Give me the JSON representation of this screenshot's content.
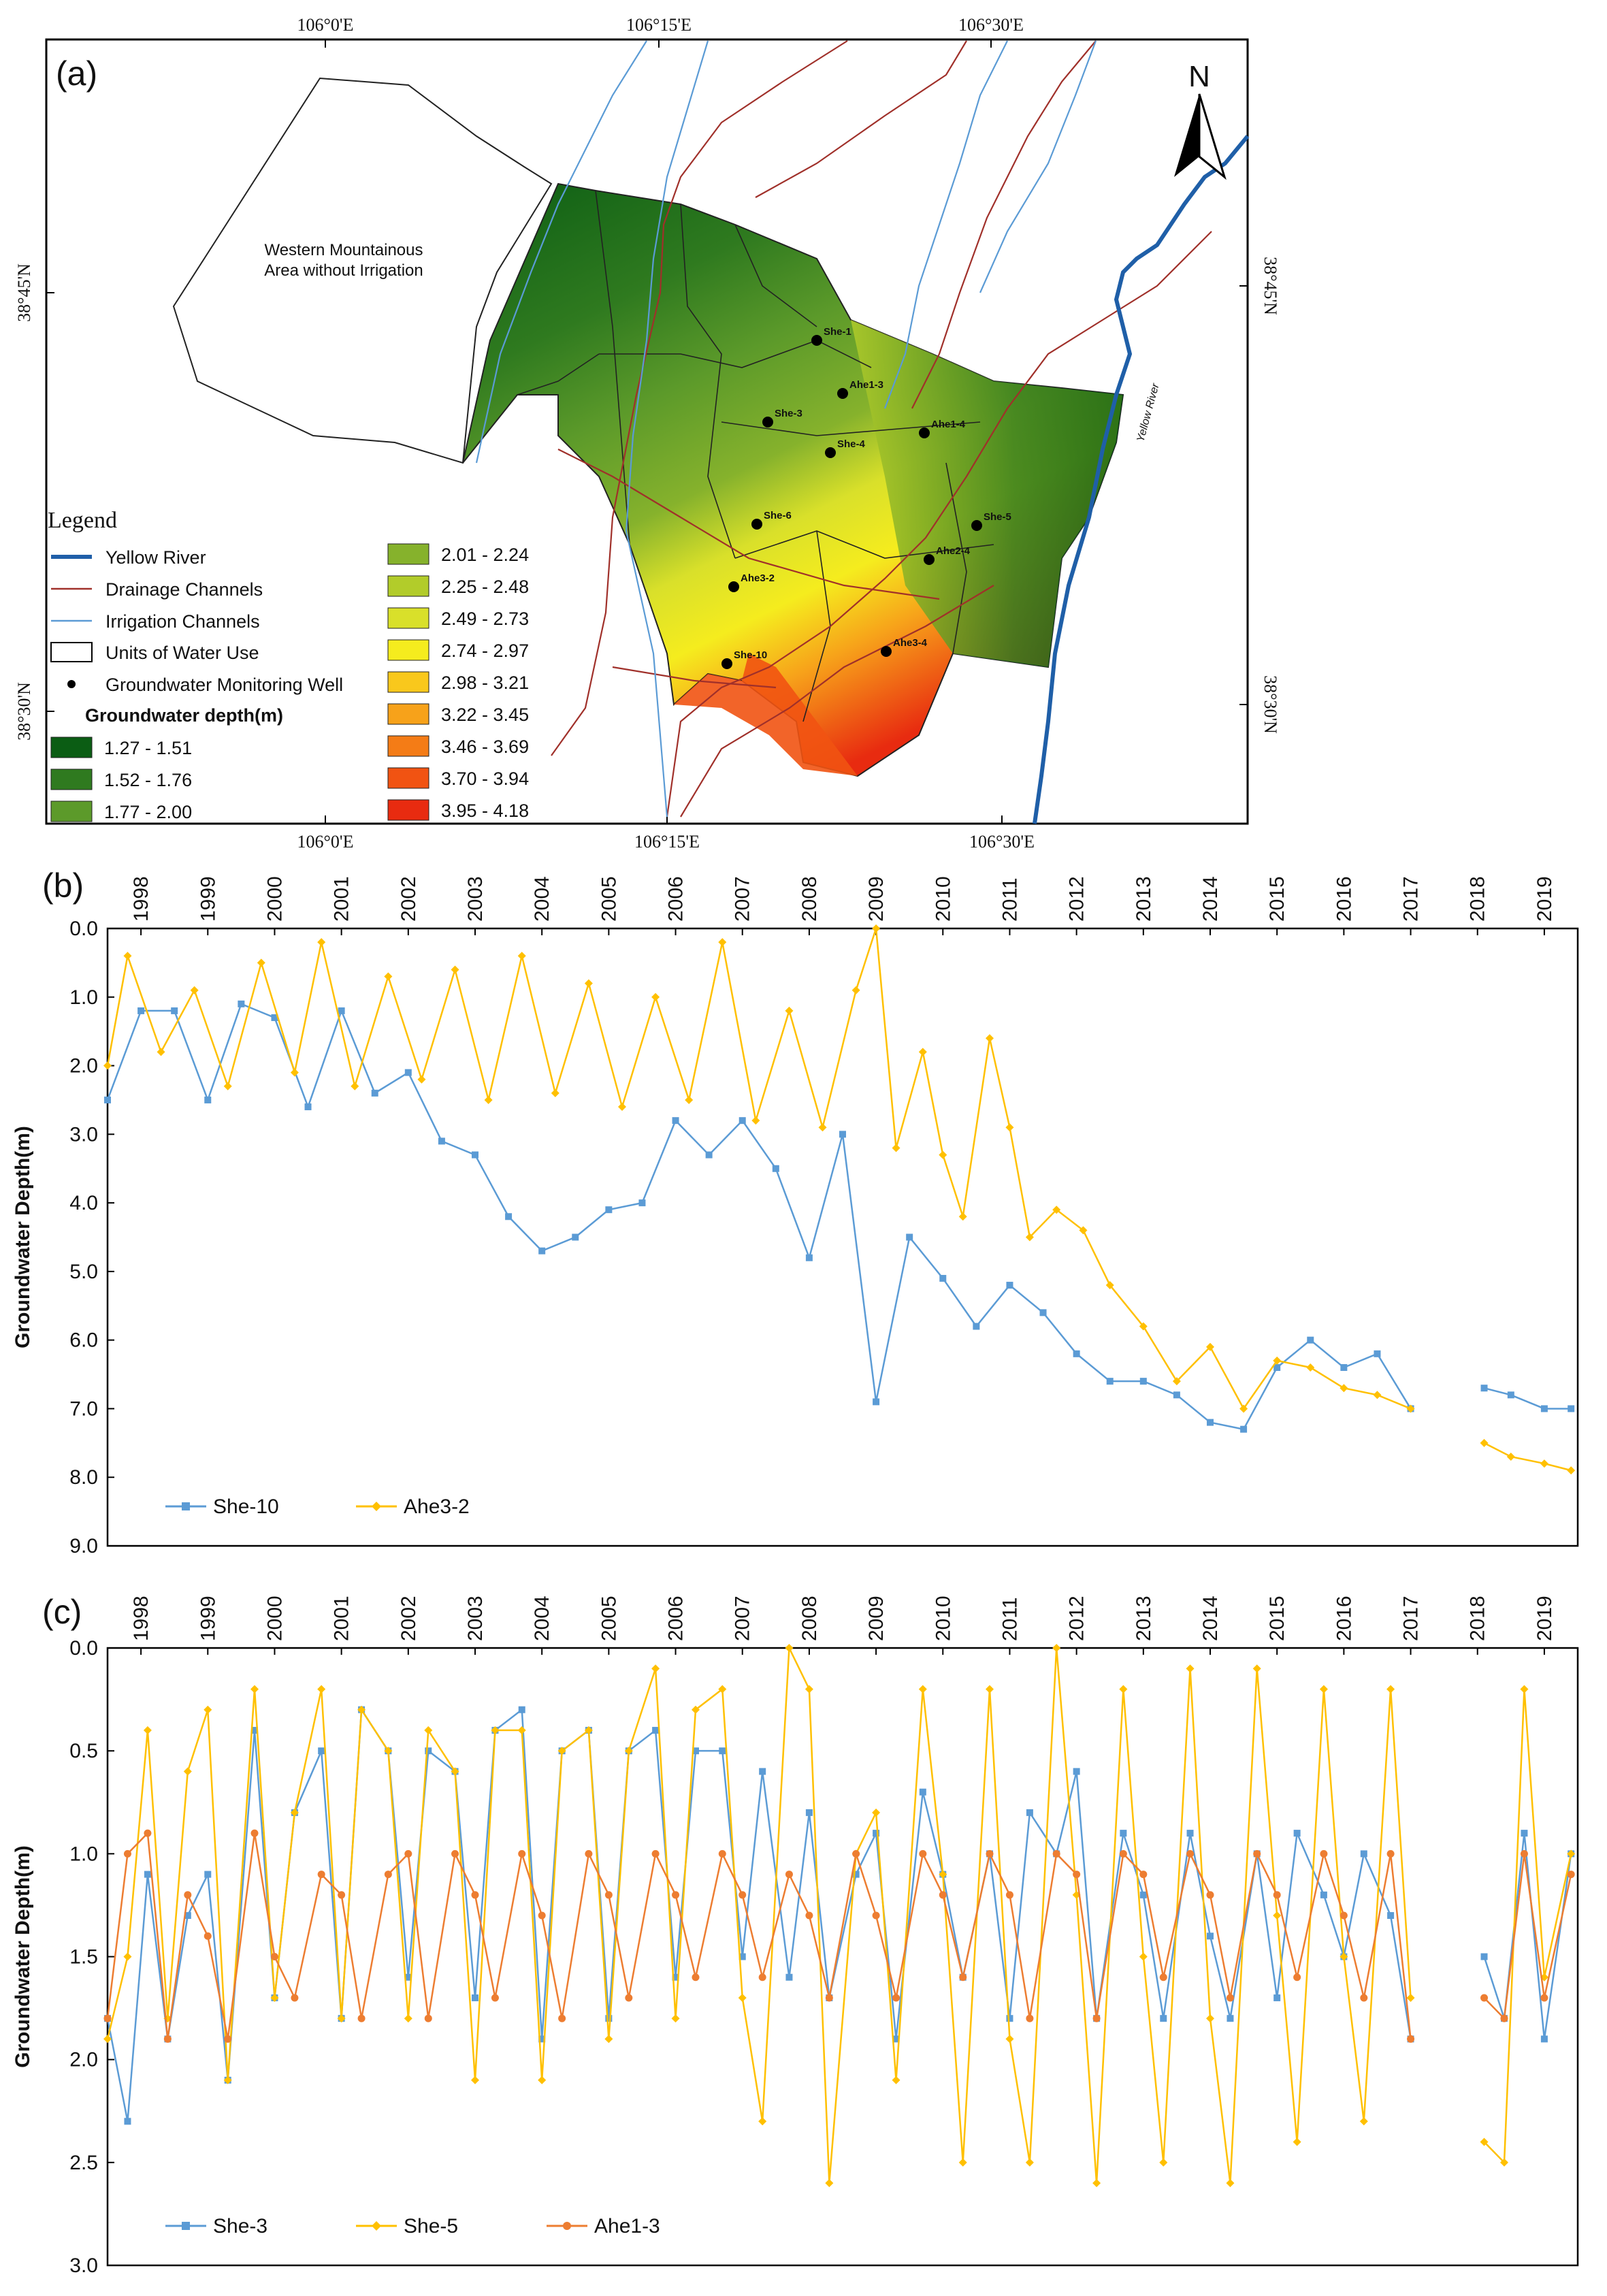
{
  "map": {
    "panel_label": "(a)",
    "top_ticks": [
      "106°0'E",
      "106°15'E",
      "106°30'E"
    ],
    "bottom_ticks": [
      "106°0'E",
      "106°15'E",
      "106°30'E"
    ],
    "left_ticks": [
      "38°45'N",
      "38°30'N"
    ],
    "right_ticks": [
      "38°45'N",
      "38°30'N"
    ],
    "north_label": "N",
    "region_label_line1": "Western Mountainous",
    "region_label_line2": "Area without Irrigation",
    "river_label": "Yellow River",
    "wells": [
      {
        "name": "She-1"
      },
      {
        "name": "Ahe1-3"
      },
      {
        "name": "She-3"
      },
      {
        "name": "She-4"
      },
      {
        "name": "Ahe1-4"
      },
      {
        "name": "She-6"
      },
      {
        "name": "She-5"
      },
      {
        "name": "Ahe2-4"
      },
      {
        "name": "Ahe3-2"
      },
      {
        "name": "Ahe3-4"
      },
      {
        "name": "She-10"
      }
    ],
    "legend": {
      "title": "Legend",
      "items": [
        "Yellow River",
        "Drainage Channels",
        "Irrigation Channels",
        "Units of Water Use",
        "Groundwater Monitoring Well"
      ],
      "depth_title": "Groundwater depth(m)",
      "classes": [
        {
          "label": "1.27 - 1.51",
          "color": "#0b5d14"
        },
        {
          "label": "1.52 - 1.76",
          "color": "#2f7a1f"
        },
        {
          "label": "1.77 - 2.00",
          "color": "#5c9a2a"
        },
        {
          "label": "2.01 - 2.24",
          "color": "#86b22c"
        },
        {
          "label": "2.25 - 2.48",
          "color": "#b2cc2a"
        },
        {
          "label": "2.49 - 2.73",
          "color": "#d9e02a"
        },
        {
          "label": "2.74 - 2.97",
          "color": "#f5ec1e"
        },
        {
          "label": "2.98 - 3.21",
          "color": "#f9c81c"
        },
        {
          "label": "3.22 - 3.45",
          "color": "#f7a21a"
        },
        {
          "label": "3.46 - 3.69",
          "color": "#f47c16"
        },
        {
          "label": "3.70 - 3.94",
          "color": "#f15312"
        },
        {
          "label": "3.95 - 4.18",
          "color": "#e82b10"
        }
      ]
    }
  },
  "chart_data": [
    {
      "type": "line",
      "panel": "(b)",
      "ylabel": "Groundwater Depth(m)",
      "xlabel": "",
      "x_tick_labels": [
        "1998",
        "1999",
        "2000",
        "2001",
        "2002",
        "2003",
        "2004",
        "2005",
        "2006",
        "2007",
        "2008",
        "2009",
        "2010",
        "2011",
        "2012",
        "2013",
        "2014",
        "2015",
        "2016",
        "2017",
        "2018",
        "2019"
      ],
      "y_tick_labels": [
        "0.0",
        "1.0",
        "2.0",
        "3.0",
        "4.0",
        "5.0",
        "6.0",
        "7.0",
        "8.0",
        "9.0"
      ],
      "ylim": [
        0,
        9
      ],
      "y_inverted": true,
      "xlim": [
        1998.0,
        2020.0
      ],
      "legend": "bottom-left",
      "series": [
        {
          "name": "She-10",
          "color": "#5b9bd5",
          "marker": "square",
          "x": [
            1998.0,
            1998.5,
            1999.0,
            1999.5,
            2000.0,
            2000.5,
            2001.0,
            2001.5,
            2002.0,
            2002.5,
            2003.0,
            2003.5,
            2004.0,
            2004.5,
            2005.0,
            2005.5,
            2006.0,
            2006.5,
            2007.0,
            2007.5,
            2008.0,
            2008.5,
            2009.0,
            2009.5,
            2010.0,
            2010.5,
            2011.0,
            2011.5,
            2012.0,
            2012.5,
            2013.0,
            2013.5,
            2014.0,
            2014.5,
            2015.0,
            2015.5,
            2016.0,
            2016.5,
            2017.0,
            2017.5,
            2018.6,
            2019.0,
            2019.5,
            2019.9
          ],
          "values": [
            2.5,
            1.2,
            1.2,
            2.5,
            1.1,
            1.3,
            2.6,
            1.2,
            2.4,
            2.1,
            3.1,
            3.3,
            4.2,
            4.7,
            4.5,
            4.1,
            4.0,
            2.8,
            3.3,
            2.8,
            3.5,
            4.8,
            3.0,
            6.9,
            4.5,
            5.1,
            5.8,
            5.2,
            5.6,
            6.2,
            6.6,
            6.6,
            6.8,
            7.2,
            7.3,
            6.4,
            6.0,
            6.4,
            6.2,
            7.0,
            6.7,
            6.8,
            7.0,
            7.0
          ]
        },
        {
          "name": "Ahe3-2",
          "color": "#ffc000",
          "marker": "diamond",
          "x": [
            1998.0,
            1998.3,
            1998.8,
            1999.3,
            1999.8,
            2000.3,
            2000.8,
            2001.2,
            2001.7,
            2002.2,
            2002.7,
            2003.2,
            2003.7,
            2004.2,
            2004.7,
            2005.2,
            2005.7,
            2006.2,
            2006.7,
            2007.2,
            2007.7,
            2008.2,
            2008.7,
            2009.2,
            2009.5,
            2009.8,
            2010.2,
            2010.5,
            2010.8,
            2011.2,
            2011.5,
            2011.8,
            2012.2,
            2012.6,
            2013.0,
            2013.5,
            2014.0,
            2014.5,
            2015.0,
            2015.5,
            2016.0,
            2016.5,
            2017.0,
            2017.5,
            2018.6,
            2019.0,
            2019.5,
            2019.9
          ],
          "values": [
            2.0,
            0.4,
            1.8,
            0.9,
            2.3,
            0.5,
            2.1,
            0.2,
            2.3,
            0.7,
            2.2,
            0.6,
            2.5,
            0.4,
            2.4,
            0.8,
            2.6,
            1.0,
            2.5,
            0.2,
            2.8,
            1.2,
            2.9,
            0.9,
            0.0,
            3.2,
            1.8,
            3.3,
            4.2,
            1.6,
            2.9,
            4.5,
            4.1,
            4.4,
            5.2,
            5.8,
            6.6,
            6.1,
            7.0,
            6.3,
            6.4,
            6.7,
            6.8,
            7.0,
            7.5,
            7.7,
            7.8,
            7.9
          ]
        }
      ]
    },
    {
      "type": "line",
      "panel": "(c)",
      "ylabel": "Groundwater Depth(m)",
      "xlabel": "",
      "x_tick_labels": [
        "1998",
        "1999",
        "2000",
        "2001",
        "2002",
        "2003",
        "2004",
        "2005",
        "2006",
        "2007",
        "2008",
        "2009",
        "2010",
        "2011",
        "2012",
        "2013",
        "2014",
        "2015",
        "2016",
        "2017",
        "2018",
        "2019"
      ],
      "y_tick_labels": [
        "0.0",
        "0.5",
        "1.0",
        "1.5",
        "2.0",
        "2.5",
        "3.0"
      ],
      "ylim": [
        0,
        3
      ],
      "y_inverted": true,
      "xlim": [
        1998.0,
        2020.0
      ],
      "legend": "bottom-left",
      "series": [
        {
          "name": "She-3",
          "color": "#5b9bd5",
          "marker": "square",
          "x": [
            1998.0,
            1998.3,
            1998.6,
            1998.9,
            1999.2,
            1999.5,
            1999.8,
            2000.2,
            2000.5,
            2000.8,
            2001.2,
            2001.5,
            2001.8,
            2002.2,
            2002.5,
            2002.8,
            2003.2,
            2003.5,
            2003.8,
            2004.2,
            2004.5,
            2004.8,
            2005.2,
            2005.5,
            2005.8,
            2006.2,
            2006.5,
            2006.8,
            2007.2,
            2007.5,
            2007.8,
            2008.2,
            2008.5,
            2008.8,
            2009.2,
            2009.5,
            2009.8,
            2010.2,
            2010.5,
            2010.8,
            2011.2,
            2011.5,
            2011.8,
            2012.2,
            2012.5,
            2012.8,
            2013.2,
            2013.5,
            2013.8,
            2014.2,
            2014.5,
            2014.8,
            2015.2,
            2015.5,
            2015.8,
            2016.2,
            2016.5,
            2016.8,
            2017.2,
            2017.5,
            2018.6,
            2018.9,
            2019.2,
            2019.5,
            2019.9
          ],
          "values": [
            1.8,
            2.3,
            1.1,
            1.9,
            1.3,
            1.1,
            2.1,
            0.4,
            1.7,
            0.8,
            0.5,
            1.8,
            0.3,
            0.5,
            1.6,
            0.5,
            0.6,
            1.7,
            0.4,
            0.3,
            1.9,
            0.5,
            0.4,
            1.8,
            0.5,
            0.4,
            1.6,
            0.5,
            0.5,
            1.5,
            0.6,
            1.6,
            0.8,
            1.7,
            1.1,
            0.9,
            1.9,
            0.7,
            1.1,
            1.6,
            1.0,
            1.8,
            0.8,
            1.0,
            0.6,
            1.8,
            0.9,
            1.2,
            1.8,
            0.9,
            1.4,
            1.8,
            1.0,
            1.7,
            0.9,
            1.2,
            1.5,
            1.0,
            1.3,
            1.9,
            1.5,
            1.8,
            0.9,
            1.9,
            1.0
          ]
        },
        {
          "name": "She-5",
          "color": "#ffc000",
          "marker": "diamond",
          "x": [
            1998.0,
            1998.3,
            1998.6,
            1998.9,
            1999.2,
            1999.5,
            1999.8,
            2000.2,
            2000.5,
            2000.8,
            2001.2,
            2001.5,
            2001.8,
            2002.2,
            2002.5,
            2002.8,
            2003.2,
            2003.5,
            2003.8,
            2004.2,
            2004.5,
            2004.8,
            2005.2,
            2005.5,
            2005.8,
            2006.2,
            2006.5,
            2006.8,
            2007.2,
            2007.5,
            2007.8,
            2008.2,
            2008.5,
            2008.8,
            2009.2,
            2009.5,
            2009.8,
            2010.2,
            2010.5,
            2010.8,
            2011.2,
            2011.5,
            2011.8,
            2012.2,
            2012.5,
            2012.8,
            2013.2,
            2013.5,
            2013.8,
            2014.2,
            2014.5,
            2014.8,
            2015.2,
            2015.5,
            2015.8,
            2016.2,
            2016.5,
            2016.8,
            2017.2,
            2017.5,
            2018.6,
            2018.9,
            2019.2,
            2019.5,
            2019.9
          ],
          "values": [
            1.9,
            1.5,
            0.4,
            1.8,
            0.6,
            0.3,
            2.1,
            0.2,
            1.7,
            0.8,
            0.2,
            1.8,
            0.3,
            0.5,
            1.8,
            0.4,
            0.6,
            2.1,
            0.4,
            0.4,
            2.1,
            0.5,
            0.4,
            1.9,
            0.5,
            0.1,
            1.8,
            0.3,
            0.2,
            1.7,
            2.3,
            0.0,
            0.2,
            2.6,
            1.0,
            0.8,
            2.1,
            0.2,
            1.1,
            2.5,
            0.2,
            1.9,
            2.5,
            0.0,
            1.2,
            2.6,
            0.2,
            1.5,
            2.5,
            0.1,
            1.8,
            2.6,
            0.1,
            1.3,
            2.4,
            0.2,
            1.5,
            2.3,
            0.2,
            1.7,
            2.4,
            2.5,
            0.2,
            1.6,
            1.0
          ]
        },
        {
          "name": "Ahe1-3",
          "color": "#ed7d31",
          "marker": "circle",
          "x": [
            1998.0,
            1998.3,
            1998.6,
            1998.9,
            1999.2,
            1999.5,
            1999.8,
            2000.2,
            2000.5,
            2000.8,
            2001.2,
            2001.5,
            2001.8,
            2002.2,
            2002.5,
            2002.8,
            2003.2,
            2003.5,
            2003.8,
            2004.2,
            2004.5,
            2004.8,
            2005.2,
            2005.5,
            2005.8,
            2006.2,
            2006.5,
            2006.8,
            2007.2,
            2007.5,
            2007.8,
            2008.2,
            2008.5,
            2008.8,
            2009.2,
            2009.5,
            2009.8,
            2010.2,
            2010.5,
            2010.8,
            2011.2,
            2011.5,
            2011.8,
            2012.2,
            2012.5,
            2012.8,
            2013.2,
            2013.5,
            2013.8,
            2014.2,
            2014.5,
            2014.8,
            2015.2,
            2015.5,
            2015.8,
            2016.2,
            2016.5,
            2016.8,
            2017.2,
            2017.5,
            2018.6,
            2018.9,
            2019.2,
            2019.5,
            2019.9
          ],
          "values": [
            1.8,
            1.0,
            0.9,
            1.9,
            1.2,
            1.4,
            1.9,
            0.9,
            1.5,
            1.7,
            1.1,
            1.2,
            1.8,
            1.1,
            1.0,
            1.8,
            1.0,
            1.2,
            1.7,
            1.0,
            1.3,
            1.8,
            1.0,
            1.2,
            1.7,
            1.0,
            1.2,
            1.6,
            1.0,
            1.2,
            1.6,
            1.1,
            1.3,
            1.7,
            1.0,
            1.3,
            1.7,
            1.0,
            1.2,
            1.6,
            1.0,
            1.2,
            1.8,
            1.0,
            1.1,
            1.8,
            1.0,
            1.1,
            1.6,
            1.0,
            1.2,
            1.7,
            1.0,
            1.2,
            1.6,
            1.0,
            1.3,
            1.7,
            1.0,
            1.9,
            1.7,
            1.8,
            1.0,
            1.7,
            1.1
          ]
        }
      ]
    }
  ]
}
